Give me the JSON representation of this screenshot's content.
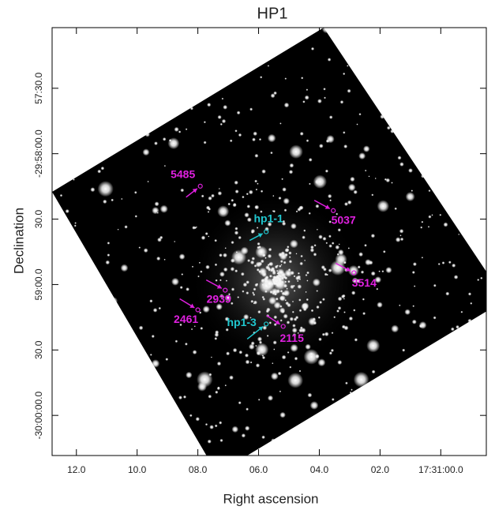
{
  "chart_data": {
    "type": "image",
    "title": "HP1",
    "x_label": "Right ascension",
    "y_label": "Declination",
    "xlim": [
      12.8,
      -1.5
    ],
    "xticks": [
      {
        "value": 12,
        "label": "12.0"
      },
      {
        "value": 10,
        "label": "10.0"
      },
      {
        "value": 8,
        "label": "08.0"
      },
      {
        "value": 6,
        "label": "06.0"
      },
      {
        "value": 4,
        "label": "04.0"
      },
      {
        "value": 2,
        "label": "02.0"
      },
      {
        "value": 0,
        "label": "17:31:00.0"
      }
    ],
    "ylim": [
      -108018.4,
      -107822.2
    ],
    "yticks": [
      {
        "value": -107850,
        "label": "57:30.0"
      },
      {
        "value": -107880,
        "label": "-29:58:00.0"
      },
      {
        "value": -107910,
        "label": "30.0"
      },
      {
        "value": -107940,
        "label": "59:00.0"
      },
      {
        "value": -107970,
        "label": "30.0"
      },
      {
        "value": -108000,
        "label": "-30:00:00.0"
      }
    ],
    "annotations": [
      {
        "text": "5485",
        "x": 7.92,
        "y": -107894.9,
        "color": "#e020e0"
      },
      {
        "text": "5037",
        "x": 3.54,
        "y": -107906.1,
        "color": "#e020e0"
      },
      {
        "text": "hp1-1",
        "x": 5.75,
        "y": -107915.8,
        "color": "#20c8d0"
      },
      {
        "text": "3514",
        "x": 2.86,
        "y": -107934.6,
        "color": "#e020e0"
      },
      {
        "text": "2939",
        "x": 7.1,
        "y": -107942.6,
        "color": "#e020e0"
      },
      {
        "text": "2461",
        "x": 8.0,
        "y": -107951.6,
        "color": "#e020e0"
      },
      {
        "text": "hp1-3",
        "x": 5.75,
        "y": -107958.1,
        "color": "#20c8d0"
      },
      {
        "text": "2115",
        "x": 5.19,
        "y": -107959.2,
        "color": "#e020e0"
      }
    ]
  }
}
